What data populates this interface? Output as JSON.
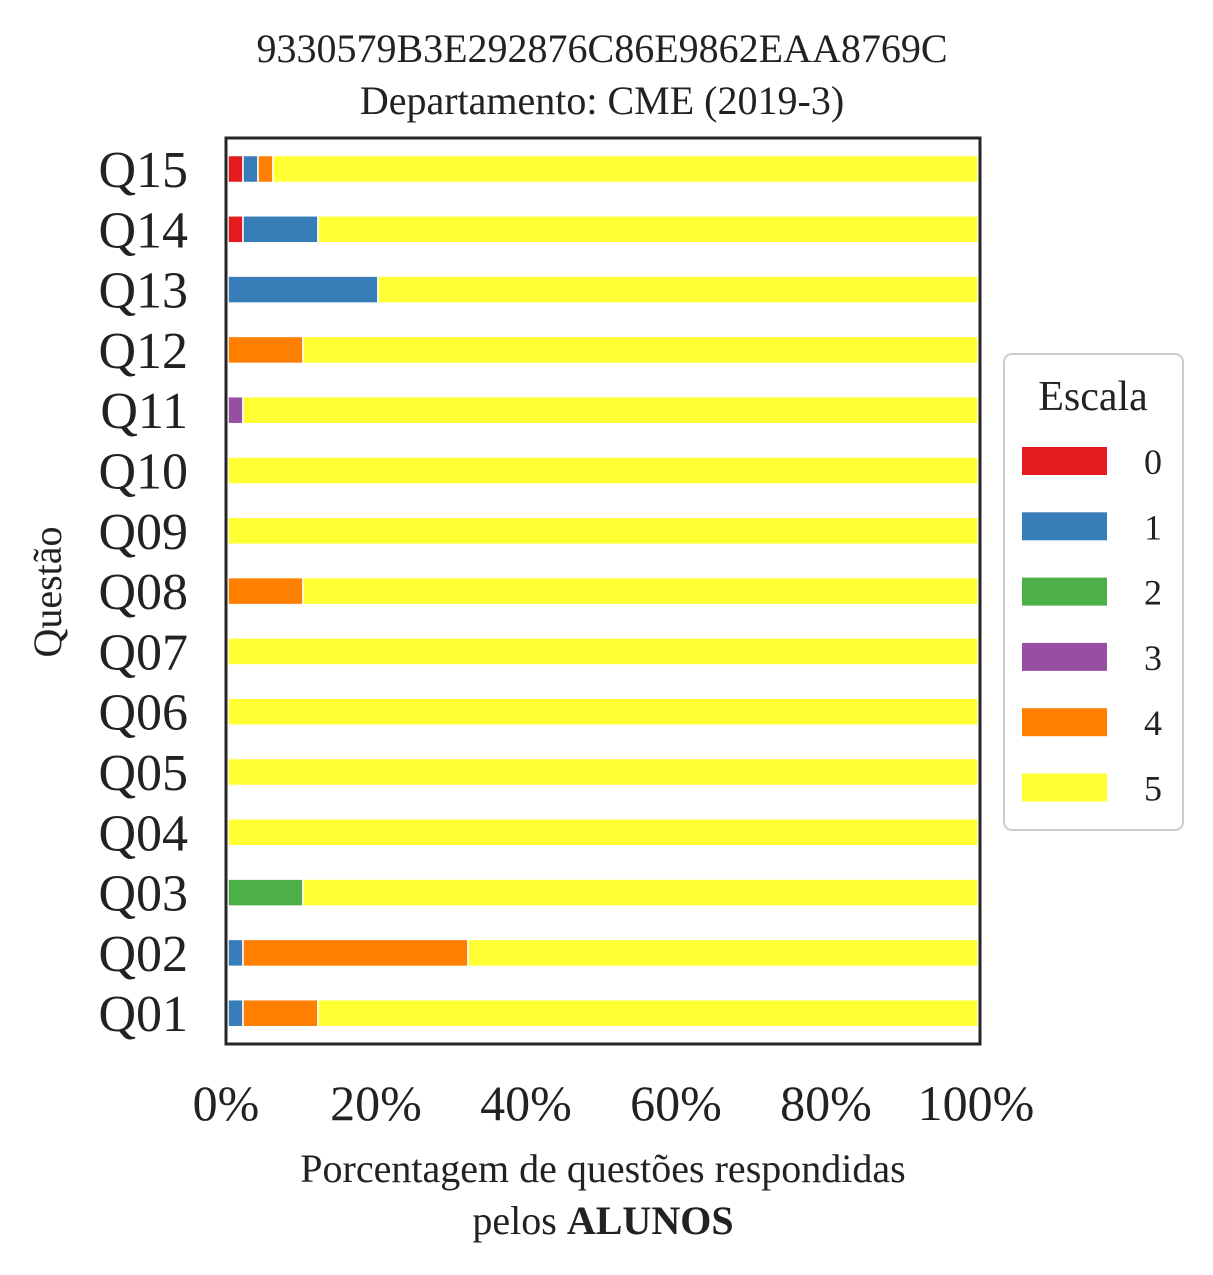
{
  "chart_data": {
    "type": "bar",
    "orientation": "horizontal",
    "stacked": true,
    "title": "9330579B3E292876C86E9862EAA8769C",
    "subtitle": "Departamento: CME (2019-3)",
    "xlabel": "Porcentagem de questões respondidas",
    "xlabel_line2_prefix": "pelos ",
    "xlabel_line2_bold": "ALUNOS",
    "ylabel": "Questão",
    "xlim": [
      0,
      100
    ],
    "x_ticks": [
      "0%",
      "20%",
      "40%",
      "60%",
      "80%",
      "100%"
    ],
    "x_tick_values": [
      0,
      20,
      40,
      60,
      80,
      100
    ],
    "categories": [
      "Q01",
      "Q02",
      "Q03",
      "Q04",
      "Q05",
      "Q06",
      "Q07",
      "Q08",
      "Q09",
      "Q10",
      "Q11",
      "Q12",
      "Q13",
      "Q14",
      "Q15"
    ],
    "legend": {
      "title": "Escala",
      "placement": "right"
    },
    "grid": false,
    "series": [
      {
        "name": "0",
        "color": "#e41a1c",
        "values": [
          0,
          0,
          0,
          0,
          0,
          0,
          0,
          0,
          0,
          0,
          0,
          0,
          0,
          2,
          2
        ]
      },
      {
        "name": "1",
        "color": "#377eb8",
        "values": [
          2,
          2,
          0,
          0,
          0,
          0,
          0,
          0,
          0,
          0,
          0,
          0,
          20,
          10,
          2
        ]
      },
      {
        "name": "2",
        "color": "#4daf4a",
        "values": [
          0,
          0,
          10,
          0,
          0,
          0,
          0,
          0,
          0,
          0,
          0,
          0,
          0,
          0,
          0
        ]
      },
      {
        "name": "3",
        "color": "#984ea3",
        "values": [
          0,
          0,
          0,
          0,
          0,
          0,
          0,
          0,
          0,
          0,
          2,
          0,
          0,
          0,
          0
        ]
      },
      {
        "name": "4",
        "color": "#ff7f00",
        "values": [
          10,
          30,
          0,
          0,
          0,
          0,
          0,
          10,
          0,
          0,
          0,
          10,
          0,
          0,
          2
        ]
      },
      {
        "name": "5",
        "color": "#ffff33",
        "values": [
          88,
          68,
          90,
          100,
          100,
          100,
          100,
          90,
          100,
          100,
          98,
          90,
          80,
          88,
          94
        ]
      }
    ]
  }
}
